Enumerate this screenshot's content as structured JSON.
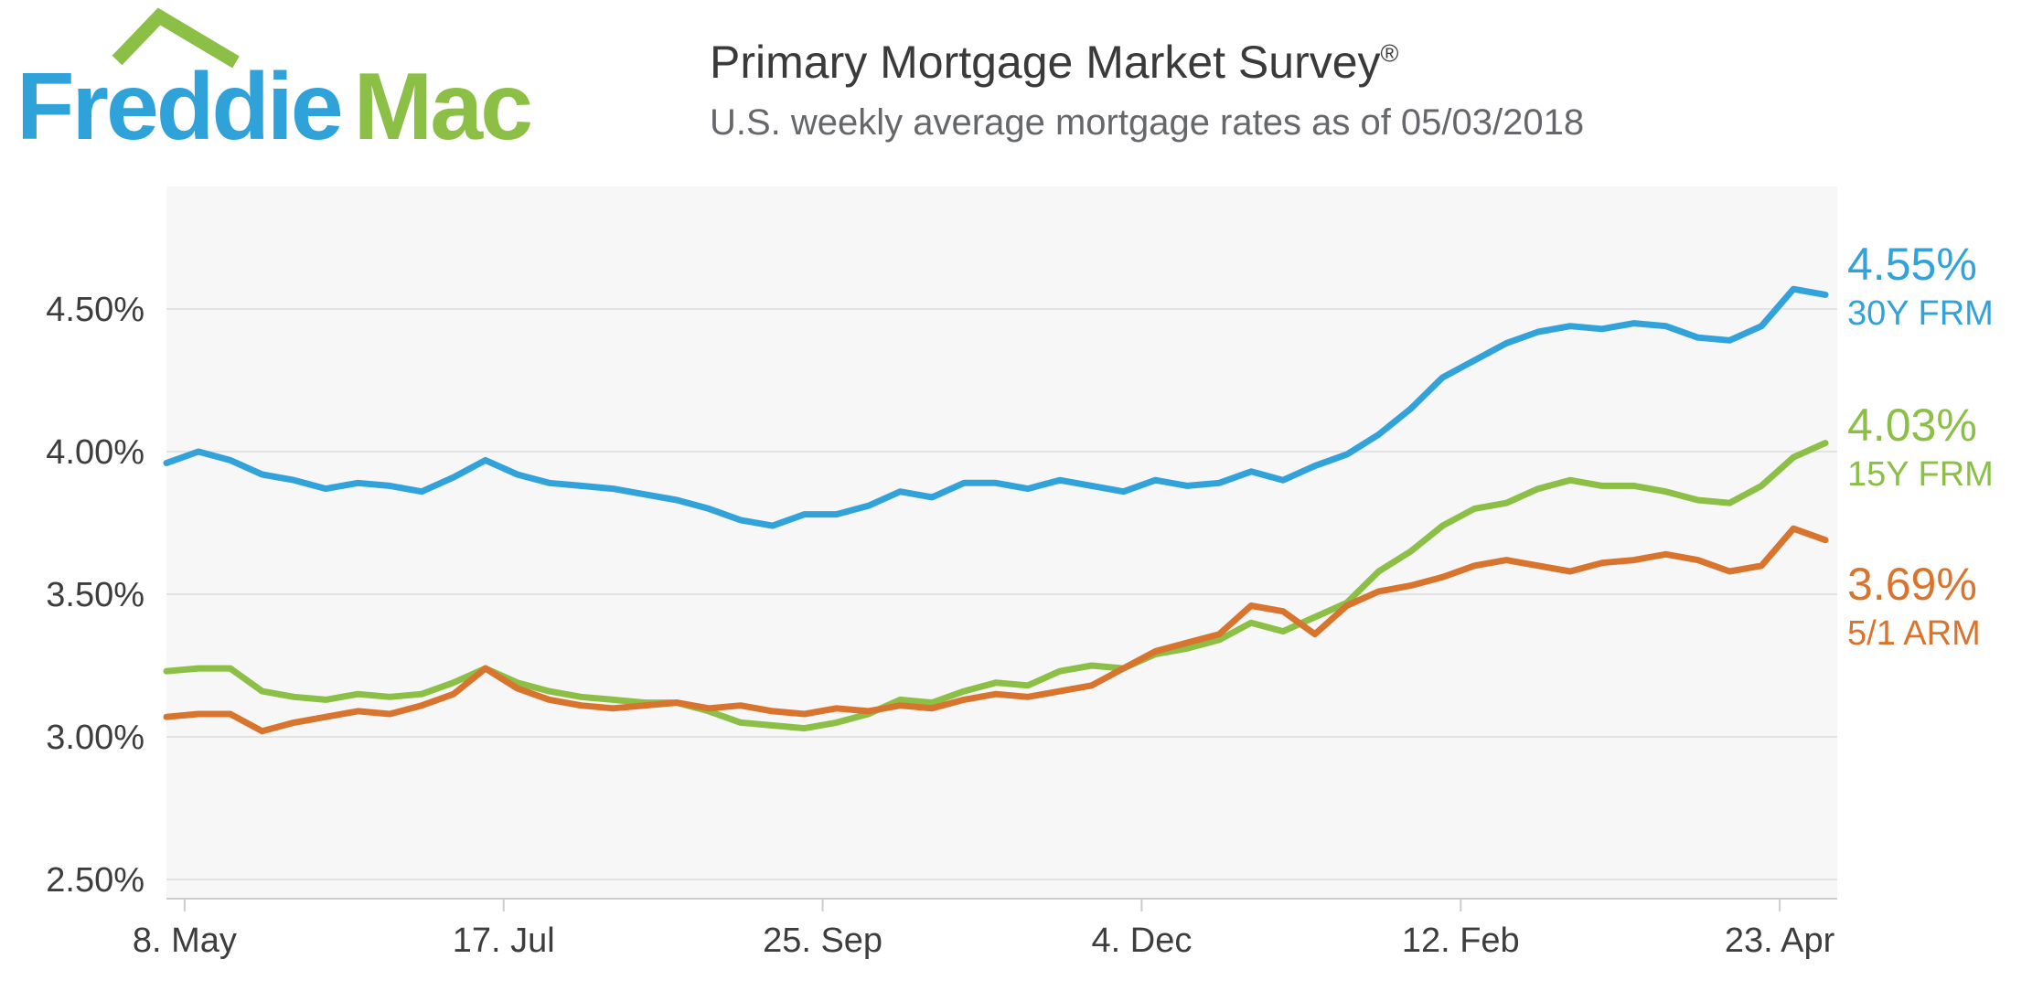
{
  "header": {
    "logo": {
      "word1": "Freddie",
      "word2": "Mac",
      "roof_icon": "house-roof-icon",
      "blue": "#2fa2d9",
      "green": "#8bbf45"
    },
    "title": "Primary Mortgage Market Survey",
    "title_reg": "®",
    "subtitle": "U.S. weekly average mortgage rates as of 05/03/2018"
  },
  "chart_data": {
    "type": "line",
    "title": "Primary Mortgage Market Survey",
    "subtitle": "U.S. weekly average mortgage rates as of 05/03/2018",
    "plot_background": "#f7f7f7",
    "grid": "horizontal",
    "legend_position": "right-of-plot",
    "ylim": [
      2.43,
      4.93
    ],
    "y_ticks": [
      {
        "label": "4.50%",
        "v": 4.5
      },
      {
        "label": "4.00%",
        "v": 4.0
      },
      {
        "label": "3.50%",
        "v": 3.5
      },
      {
        "label": "3.00%",
        "v": 3.0
      },
      {
        "label": "2.50%",
        "v": 2.5
      }
    ],
    "x_ticks": [
      {
        "label": "8. May",
        "i": 0.57
      },
      {
        "label": "17. Jul",
        "i": 10.57
      },
      {
        "label": "25. Sep",
        "i": 20.57
      },
      {
        "label": "4. Dec",
        "i": 30.57
      },
      {
        "label": "12. Feb",
        "i": 40.57
      },
      {
        "label": "23. Apr",
        "i": 50.57
      }
    ],
    "x": [
      "2017-05-04",
      "2017-05-11",
      "2017-05-18",
      "2017-05-25",
      "2017-06-01",
      "2017-06-08",
      "2017-06-15",
      "2017-06-22",
      "2017-06-29",
      "2017-07-06",
      "2017-07-13",
      "2017-07-20",
      "2017-07-27",
      "2017-08-03",
      "2017-08-10",
      "2017-08-17",
      "2017-08-24",
      "2017-08-31",
      "2017-09-07",
      "2017-09-14",
      "2017-09-21",
      "2017-09-28",
      "2017-10-05",
      "2017-10-12",
      "2017-10-19",
      "2017-10-26",
      "2017-11-02",
      "2017-11-09",
      "2017-11-16",
      "2017-11-22",
      "2017-11-30",
      "2017-12-07",
      "2017-12-14",
      "2017-12-21",
      "2017-12-28",
      "2018-01-04",
      "2018-01-11",
      "2018-01-18",
      "2018-01-25",
      "2018-02-01",
      "2018-02-08",
      "2018-02-15",
      "2018-02-22",
      "2018-03-01",
      "2018-03-08",
      "2018-03-15",
      "2018-03-22",
      "2018-03-29",
      "2018-04-05",
      "2018-04-12",
      "2018-04-19",
      "2018-04-26",
      "2018-05-03"
    ],
    "series": [
      {
        "name": "30Y FRM",
        "end_label": "4.55%",
        "color": "#31a2da",
        "values": [
          3.96,
          4.0,
          3.97,
          3.92,
          3.9,
          3.87,
          3.89,
          3.88,
          3.86,
          3.91,
          3.97,
          3.92,
          3.89,
          3.88,
          3.87,
          3.85,
          3.83,
          3.8,
          3.76,
          3.74,
          3.78,
          3.78,
          3.81,
          3.86,
          3.84,
          3.89,
          3.89,
          3.87,
          3.9,
          3.88,
          3.86,
          3.9,
          3.88,
          3.89,
          3.93,
          3.9,
          3.95,
          3.99,
          4.06,
          4.15,
          4.26,
          4.32,
          4.38,
          4.42,
          4.44,
          4.43,
          4.45,
          4.44,
          4.4,
          4.39,
          4.44,
          4.57,
          4.55
        ]
      },
      {
        "name": "15Y FRM",
        "end_label": "4.03%",
        "color": "#8bbf45",
        "values": [
          3.23,
          3.24,
          3.24,
          3.16,
          3.14,
          3.13,
          3.15,
          3.14,
          3.15,
          3.19,
          3.24,
          3.19,
          3.16,
          3.14,
          3.13,
          3.12,
          3.12,
          3.09,
          3.05,
          3.04,
          3.03,
          3.05,
          3.08,
          3.13,
          3.12,
          3.16,
          3.19,
          3.18,
          3.23,
          3.25,
          3.24,
          3.29,
          3.31,
          3.34,
          3.4,
          3.37,
          3.42,
          3.47,
          3.58,
          3.65,
          3.74,
          3.8,
          3.82,
          3.87,
          3.9,
          3.88,
          3.88,
          3.86,
          3.83,
          3.82,
          3.88,
          3.98,
          4.03
        ]
      },
      {
        "name": "5/1 ARM",
        "end_label": "3.69%",
        "color": "#d9742e",
        "values": [
          3.07,
          3.08,
          3.08,
          3.02,
          3.05,
          3.07,
          3.09,
          3.08,
          3.11,
          3.15,
          3.24,
          3.17,
          3.13,
          3.11,
          3.1,
          3.11,
          3.12,
          3.1,
          3.11,
          3.09,
          3.08,
          3.1,
          3.09,
          3.11,
          3.1,
          3.13,
          3.15,
          3.14,
          3.16,
          3.18,
          3.24,
          3.3,
          3.33,
          3.36,
          3.46,
          3.44,
          3.36,
          3.46,
          3.51,
          3.53,
          3.56,
          3.6,
          3.62,
          3.6,
          3.58,
          3.61,
          3.62,
          3.64,
          3.62,
          3.58,
          3.6,
          3.73,
          3.69
        ]
      }
    ]
  }
}
